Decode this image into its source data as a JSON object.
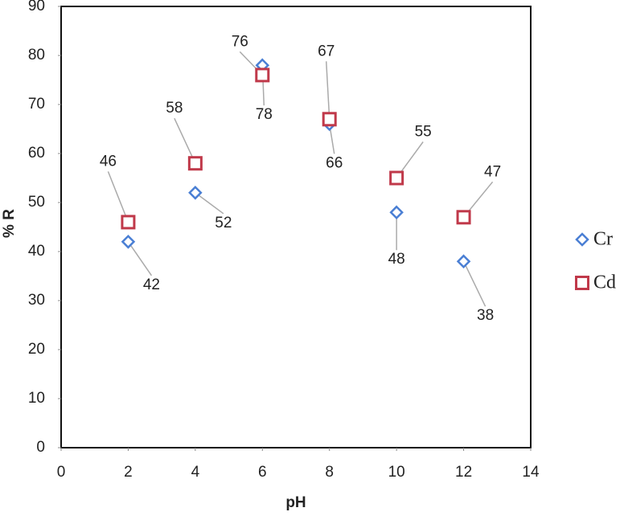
{
  "chart_data": {
    "type": "scatter",
    "x_label": "pH",
    "y_label": "% R",
    "xlim": [
      0,
      14
    ],
    "xticks": [
      0,
      2,
      4,
      6,
      8,
      10,
      12,
      14
    ],
    "ylim": [
      0,
      90
    ],
    "yticks": [
      0,
      10,
      20,
      30,
      40,
      50,
      60,
      70,
      80,
      90
    ],
    "legend": "right",
    "series": [
      {
        "name": "Cr",
        "color": "#4a7fd4",
        "marker": "diamond",
        "x": [
          2,
          4,
          6,
          8,
          10,
          12
        ],
        "values": [
          42,
          52,
          78,
          66,
          48,
          38
        ]
      },
      {
        "name": "Cd",
        "color": "#c0394a",
        "marker": "square",
        "x": [
          2,
          4,
          6,
          8,
          10,
          12
        ],
        "values": [
          46,
          58,
          76,
          67,
          55,
          47
        ]
      }
    ]
  }
}
